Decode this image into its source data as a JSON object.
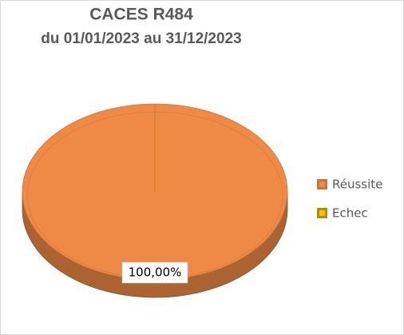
{
  "chart_data": {
    "type": "pie",
    "title": "CACES R484",
    "subtitle": "du 01/01/2023 au 31/12/2023",
    "categories": [
      "Réussite",
      "Echec"
    ],
    "values": [
      100,
      0
    ],
    "value_labels": [
      "100,00%",
      null
    ],
    "colors": [
      "#ee8a45",
      "#d4a400"
    ],
    "legend": "right",
    "three_d": true
  }
}
